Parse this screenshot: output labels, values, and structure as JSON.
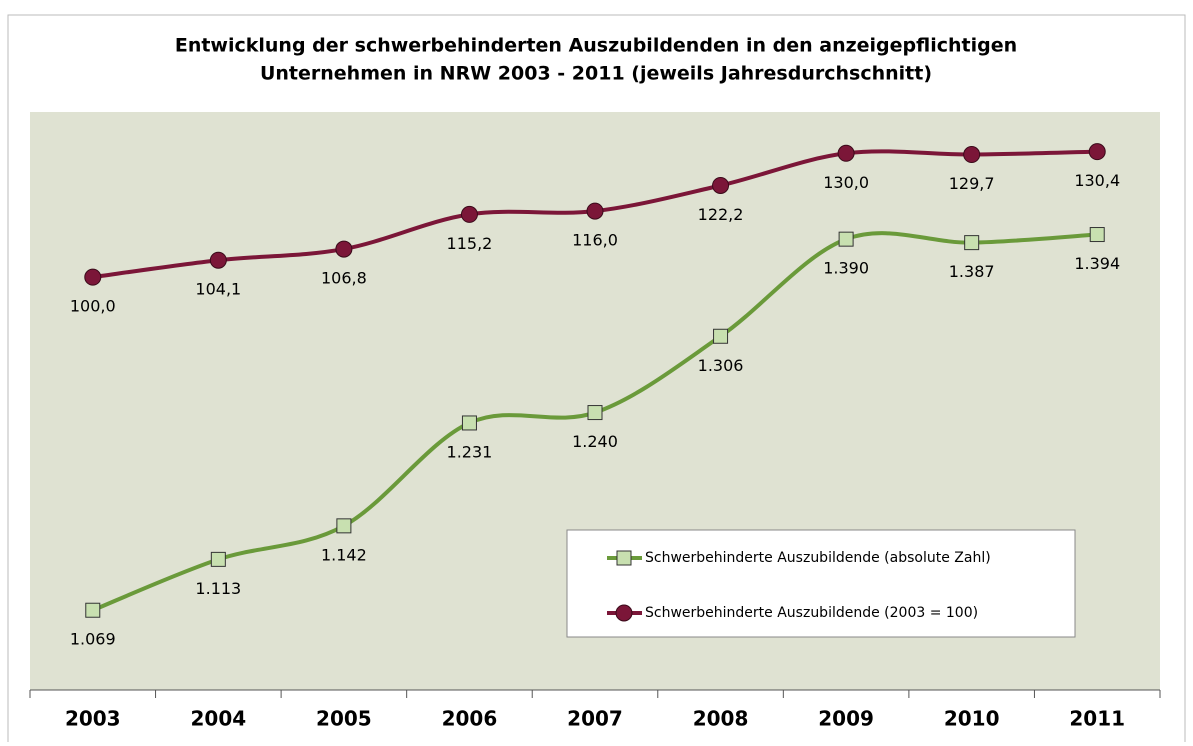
{
  "chart_data": {
    "type": "line",
    "title": [
      "Entwicklung der schwerbehinderten Auszubildenden in den anzeigepflichtigen",
      "Unternehmen in NRW 2003 - 2011 (jeweils Jahresdurchschnitt)"
    ],
    "categories": [
      "2003",
      "2004",
      "2005",
      "2006",
      "2007",
      "2008",
      "2009",
      "2010",
      "2011"
    ],
    "series": [
      {
        "name": "Schwerbehinderte Auszubildende (absolute Zahl)",
        "color": "#6a9a3a",
        "marker": "square",
        "values": [
          1069,
          1113,
          1142,
          1231,
          1240,
          1306,
          1390,
          1387,
          1394
        ],
        "value_labels": [
          "1.069",
          "1.113",
          "1.142",
          "1.231",
          "1.240",
          "1.306",
          "1.390",
          "1.387",
          "1.394"
        ]
      },
      {
        "name": "Schwerbehinderte Auszubildende (2003 = 100)",
        "color": "#7b1638",
        "marker": "circle",
        "axis": "y2",
        "values": [
          100.0,
          104.1,
          106.8,
          115.2,
          116.0,
          122.2,
          130.0,
          129.7,
          130.4
        ],
        "value_labels": [
          "100,0",
          "104,1",
          "106,8",
          "115,2",
          "116,0",
          "122,2",
          "130,0",
          "129,7",
          "130,4"
        ]
      }
    ],
    "ylim": [
      1000,
      1500
    ],
    "y2lim": [
      0,
      140
    ]
  }
}
